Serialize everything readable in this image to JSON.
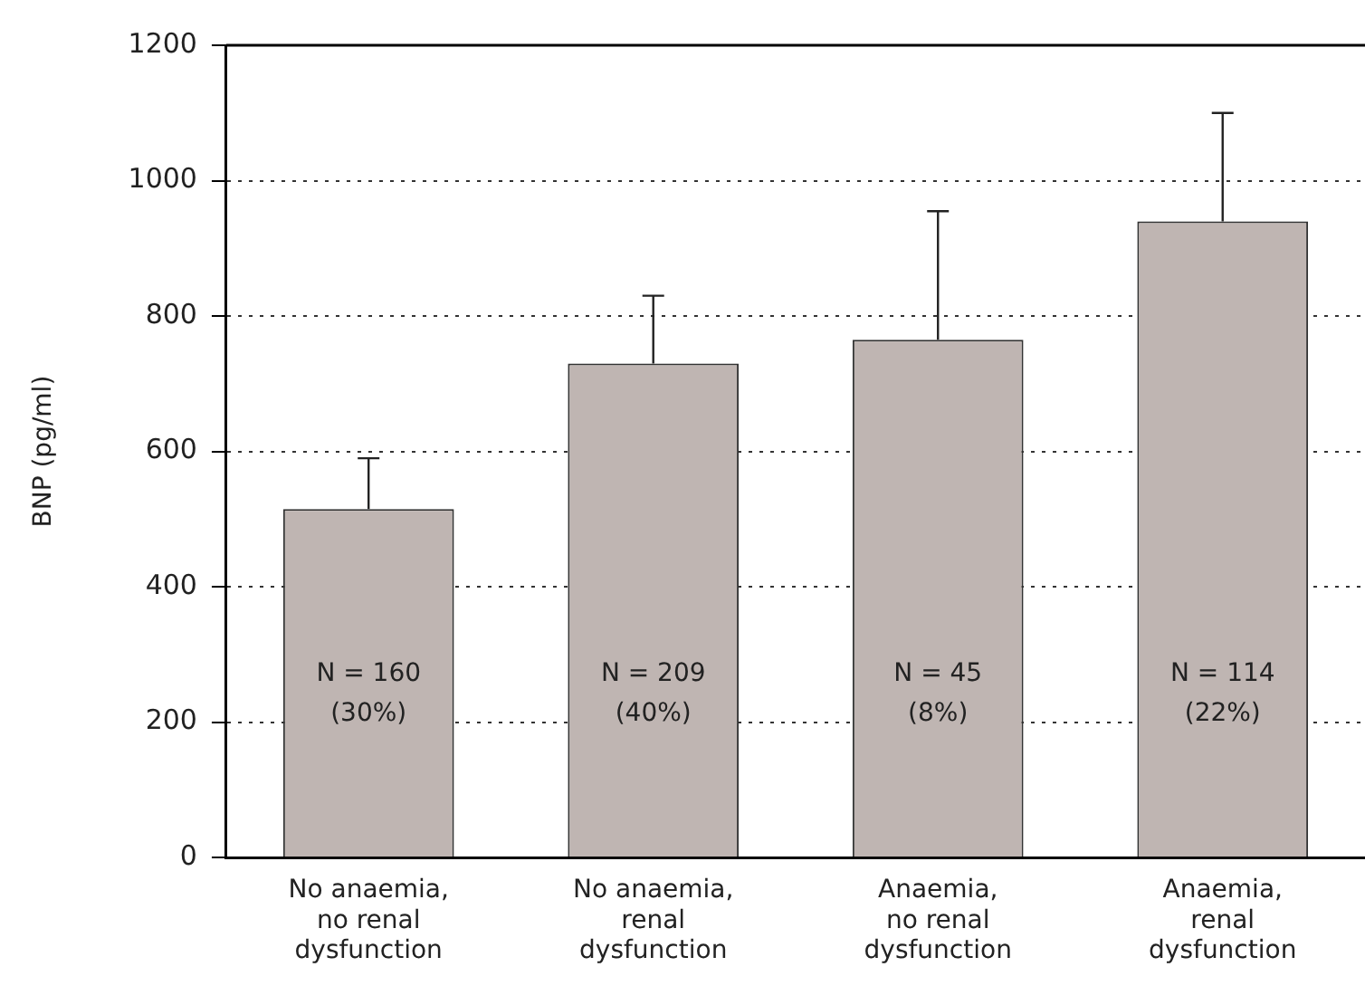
{
  "chart_data": {
    "type": "bar",
    "ylabel": "BNP (pg/ml)",
    "categories": [
      "No anaemia, no renal dysfunction",
      "No anaemia, renal dysfunction",
      "Anaemia, no renal dysfunction",
      "Anaemia, renal dysfunction"
    ],
    "values": [
      515,
      730,
      765,
      940
    ],
    "errors": [
      [
        515,
        590
      ],
      [
        730,
        830
      ],
      [
        765,
        955
      ],
      [
        940,
        1100
      ]
    ],
    "annotations": [
      "N = 160\n(30%)",
      "N = 209\n(40%)",
      "N = 45\n(8%)",
      "N = 114\n(22%)"
    ],
    "color": "#bfb5b2",
    "ylim": [
      0,
      1200
    ],
    "yticks": [
      0,
      200,
      400,
      600,
      800,
      1000,
      1200
    ],
    "grid": "y",
    "legend": false
  }
}
